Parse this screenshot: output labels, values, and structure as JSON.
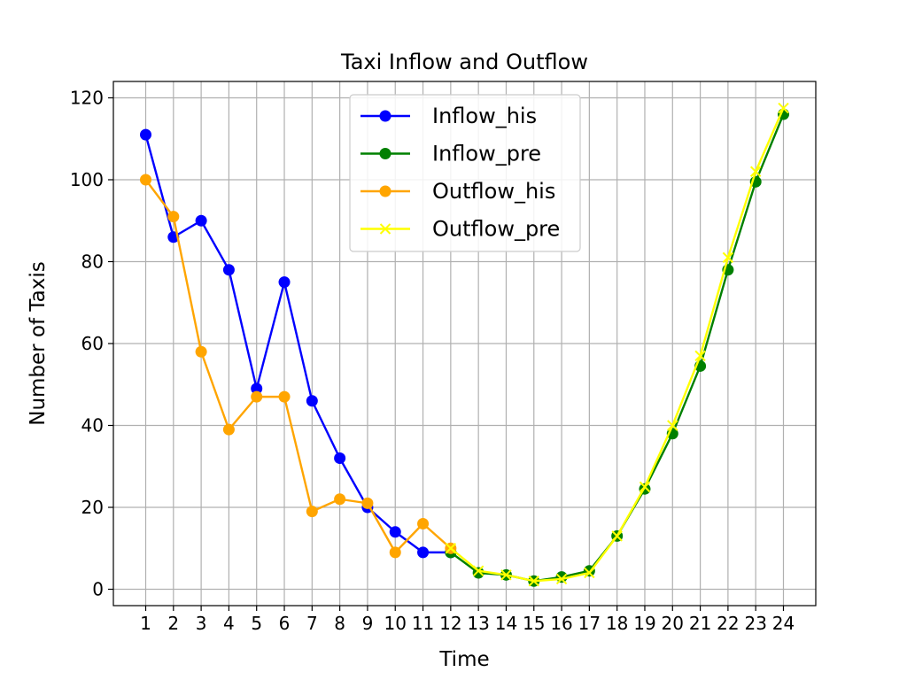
{
  "chart_data": {
    "type": "line",
    "title": "Taxi Inflow and Outflow",
    "xlabel": "Time",
    "ylabel": "Number of Taxis",
    "categories": [
      "1",
      "2",
      "3",
      "4",
      "5",
      "6",
      "7",
      "8",
      "9",
      "10",
      "11",
      "12",
      "13",
      "14",
      "15",
      "16",
      "17",
      "18",
      "19",
      "20",
      "21",
      "22",
      "23",
      "24"
    ],
    "ylim": [
      -4,
      124
    ],
    "yticks": [
      0,
      20,
      40,
      60,
      80,
      100,
      120
    ],
    "grid": true,
    "legend_position": "top-center",
    "series": [
      {
        "name": "Inflow_his",
        "color": "#0000ff",
        "marker": "circle",
        "x": [
          1,
          2,
          3,
          4,
          5,
          6,
          7,
          8,
          9,
          10,
          11,
          12
        ],
        "values": [
          111,
          86,
          90,
          78,
          49,
          75,
          46,
          32,
          20,
          14,
          9,
          9
        ]
      },
      {
        "name": "Inflow_pre",
        "color": "#008000",
        "marker": "circle",
        "x": [
          12,
          13,
          14,
          15,
          16,
          17,
          18,
          19,
          20,
          21,
          22,
          23,
          24
        ],
        "values": [
          9,
          4,
          3.5,
          2,
          3,
          4.5,
          13,
          24.5,
          38,
          54.5,
          78,
          99.5,
          116
        ]
      },
      {
        "name": "Outflow_his",
        "color": "#ffa500",
        "marker": "circle",
        "x": [
          1,
          2,
          3,
          4,
          5,
          6,
          7,
          8,
          9,
          10,
          11,
          12
        ],
        "values": [
          100,
          91,
          58,
          39,
          47,
          47,
          19,
          22,
          21,
          9,
          16,
          10
        ]
      },
      {
        "name": "Outflow_pre",
        "color": "#ffff00",
        "marker": "x",
        "x": [
          12,
          13,
          14,
          15,
          16,
          17,
          18,
          19,
          20,
          21,
          22,
          23,
          24
        ],
        "values": [
          10,
          4.5,
          3.5,
          2,
          2.5,
          4,
          13,
          25,
          40,
          57,
          81,
          102,
          117.5
        ]
      }
    ]
  }
}
